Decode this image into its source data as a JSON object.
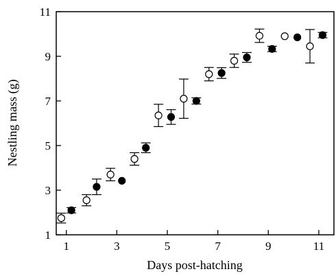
{
  "chart_data": {
    "type": "scatter",
    "title": "",
    "xlabel": "Days post-hatching",
    "ylabel": "Nestling mass (g)",
    "xlim": [
      0.6,
      11.6
    ],
    "ylim": [
      1,
      11
    ],
    "xticks": [
      1,
      3,
      5,
      7,
      9,
      11
    ],
    "yticks": [
      1,
      3,
      5,
      7,
      9,
      11
    ],
    "grid": false,
    "series": [
      {
        "marker": "open-circle",
        "points": [
          {
            "x": 0.8,
            "y": 1.75,
            "err": 0.22
          },
          {
            "x": 1.8,
            "y": 2.55,
            "err": 0.25
          },
          {
            "x": 2.75,
            "y": 3.7,
            "err": 0.28
          },
          {
            "x": 3.7,
            "y": 4.4,
            "err": 0.28
          },
          {
            "x": 4.65,
            "y": 6.35,
            "err": 0.5
          },
          {
            "x": 5.65,
            "y": 7.1,
            "err": 0.88
          },
          {
            "x": 6.65,
            "y": 8.2,
            "err": 0.3
          },
          {
            "x": 7.65,
            "y": 8.8,
            "err": 0.3
          },
          {
            "x": 8.65,
            "y": 9.92,
            "err": 0.3
          },
          {
            "x": 9.65,
            "y": 9.9,
            "err": 0.0
          },
          {
            "x": 10.65,
            "y": 9.45,
            "err": 0.75
          }
        ]
      },
      {
        "marker": "filled-circle",
        "points": [
          {
            "x": 1.2,
            "y": 2.1,
            "err": 0.12
          },
          {
            "x": 2.2,
            "y": 3.15,
            "err": 0.35
          },
          {
            "x": 3.2,
            "y": 3.42,
            "err": 0.0
          },
          {
            "x": 4.15,
            "y": 4.9,
            "err": 0.22
          },
          {
            "x": 5.15,
            "y": 6.28,
            "err": 0.33
          },
          {
            "x": 6.15,
            "y": 7.0,
            "err": 0.14
          },
          {
            "x": 7.15,
            "y": 8.25,
            "err": 0.24
          },
          {
            "x": 8.15,
            "y": 8.95,
            "err": 0.22
          },
          {
            "x": 9.15,
            "y": 9.33,
            "err": 0.12
          },
          {
            "x": 10.15,
            "y": 9.85,
            "err": 0.0
          },
          {
            "x": 11.15,
            "y": 9.95,
            "err": 0.12
          }
        ]
      }
    ]
  }
}
